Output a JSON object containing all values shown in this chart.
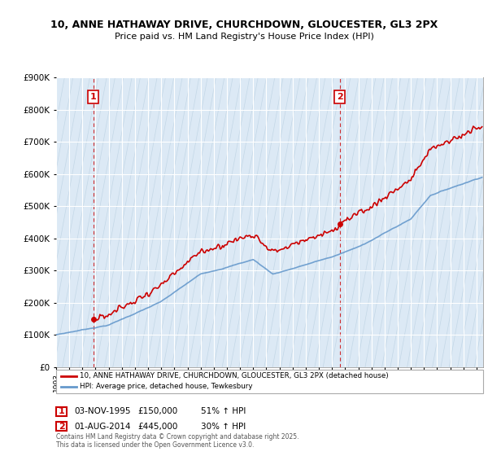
{
  "title": "10, ANNE HATHAWAY DRIVE, CHURCHDOWN, GLOUCESTER, GL3 2PX",
  "subtitle": "Price paid vs. HM Land Registry's House Price Index (HPI)",
  "sale1_date": "03-NOV-1995",
  "sale1_price": 150000,
  "sale1_label": "£150,000",
  "sale1_hpi_pct": "51% ↑ HPI",
  "sale2_date": "01-AUG-2014",
  "sale2_price": 445000,
  "sale2_label": "£445,000",
  "sale2_hpi_pct": "30% ↑ HPI",
  "legend_line1": "10, ANNE HATHAWAY DRIVE, CHURCHDOWN, GLOUCESTER, GL3 2PX (detached house)",
  "legend_line2": "HPI: Average price, detached house, Tewkesbury",
  "footer": "Contains HM Land Registry data © Crown copyright and database right 2025.\nThis data is licensed under the Open Government Licence v3.0.",
  "red_color": "#cc0000",
  "blue_color": "#6699cc",
  "bg_color": "#dce9f5",
  "background_color": "#ffffff",
  "ylim": [
    0,
    900000
  ],
  "xlim_start": 1993.0,
  "xlim_end": 2025.5,
  "sale1_x": 1995.833,
  "sale2_x": 2014.583
}
